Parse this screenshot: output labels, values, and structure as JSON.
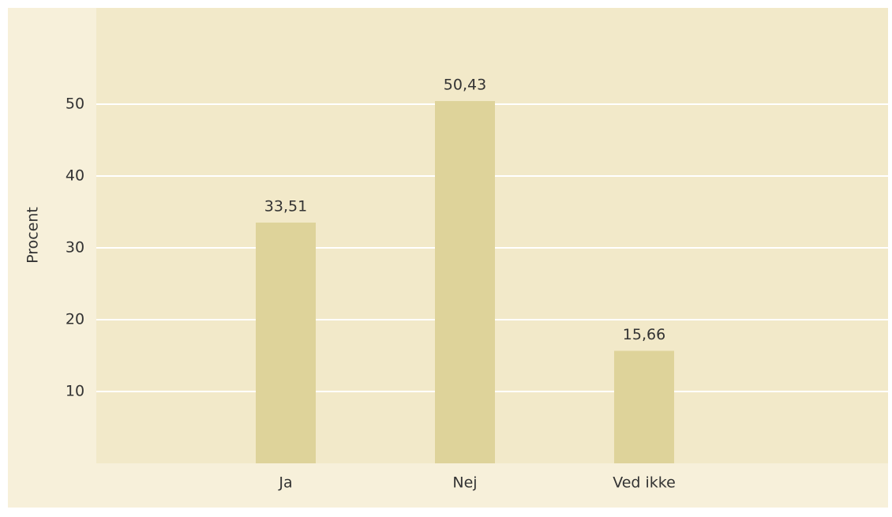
{
  "chart_data": {
    "type": "bar",
    "y_label": "Procent",
    "categories": [
      "Ja",
      "Nej",
      "Ved ikke"
    ],
    "values": [
      33.51,
      50.43,
      15.66
    ],
    "value_labels": [
      "33,51",
      "50,43",
      "15,66"
    ],
    "color": "#ded39a",
    "ylim": [
      0,
      63.4
    ],
    "yticks": [
      10,
      20,
      30,
      40,
      50
    ],
    "grid": true
  }
}
